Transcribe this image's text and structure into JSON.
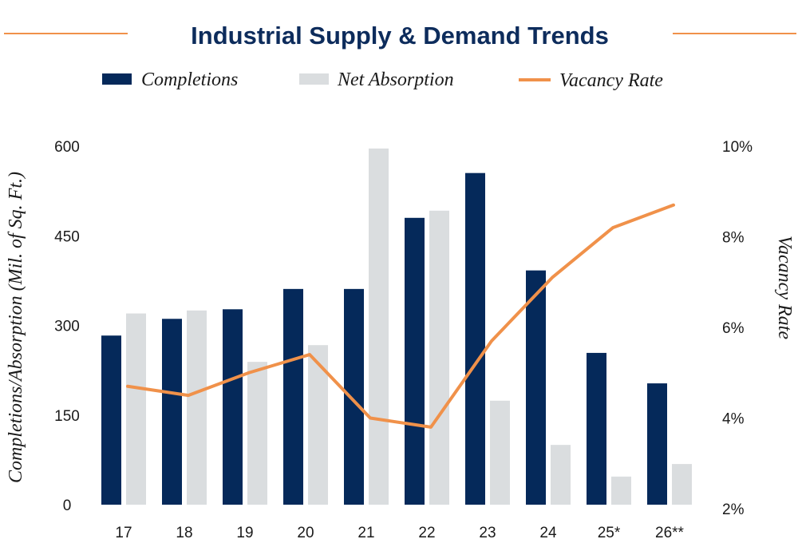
{
  "chart_data": {
    "type": "bar",
    "title": "Industrial Supply & Demand Trends",
    "categories": [
      "17",
      "18",
      "19",
      "20",
      "21",
      "22",
      "23",
      "24",
      "25*",
      "26**"
    ],
    "series": [
      {
        "name": "Completions",
        "type": "bar",
        "axis": "left",
        "color": "#05295a",
        "values": [
          283,
          311,
          327,
          361,
          361,
          480,
          555,
          392,
          254,
          203
        ]
      },
      {
        "name": "Net Absorption",
        "type": "bar",
        "axis": "left",
        "color": "#dadddf",
        "values": [
          320,
          325,
          239,
          267,
          596,
          492,
          174,
          100,
          47,
          68
        ]
      },
      {
        "name": "Vacancy Rate",
        "type": "line",
        "axis": "right",
        "color": "#f0914a",
        "values": [
          4.7,
          4.5,
          5.0,
          5.4,
          4.0,
          3.8,
          5.7,
          7.1,
          8.2,
          8.7
        ]
      }
    ],
    "ylabel": "Completions/Absorption (Mil. of Sq. Ft.)",
    "ylim": [
      0,
      600
    ],
    "yticks": [
      0,
      150,
      300,
      450,
      600
    ],
    "ytick_labels": [
      "0",
      "150",
      "300",
      "450",
      "600"
    ],
    "y2label": "Vacancy Rate",
    "y2lim": [
      2,
      10
    ],
    "y2ticks": [
      2,
      4,
      6,
      8,
      10
    ],
    "y2tick_labels": [
      "2%",
      "4%",
      "6%",
      "8%",
      "10%"
    ],
    "xlabel": "",
    "grid": false,
    "legend_position": "top-center",
    "legend": [
      "Completions",
      "Net Absorption",
      "Vacancy Rate"
    ]
  },
  "colors": {
    "title": "#0d2c5c",
    "accent_rule": "#f0914a"
  }
}
